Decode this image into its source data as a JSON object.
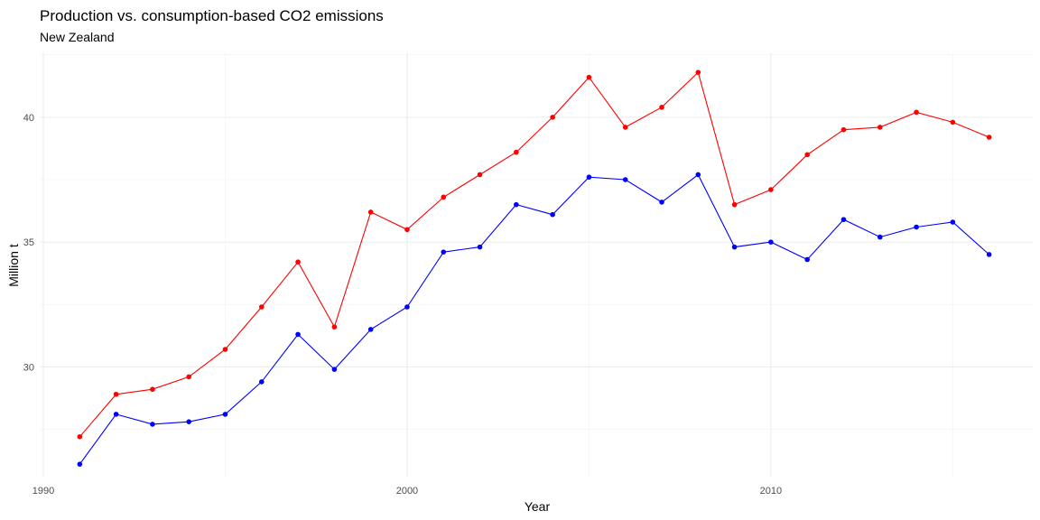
{
  "chart_data": {
    "type": "line",
    "title": "Production vs. consumption-based CO2 emissions",
    "subtitle": "New Zealand",
    "xlabel": "Year",
    "ylabel": "Million t",
    "xlim": [
      1989.9,
      2017.2
    ],
    "ylim": [
      25.6,
      42.6
    ],
    "x_ticks": [
      1990,
      2000,
      2010
    ],
    "x_minor_ticks": [
      1995,
      2005,
      2015
    ],
    "y_ticks": [
      30,
      35,
      40
    ],
    "y_minor_ticks": [
      27.5,
      32.5,
      37.5,
      42.5
    ],
    "grid": true,
    "legend": "none",
    "x": [
      1991,
      1992,
      1993,
      1994,
      1995,
      1996,
      1997,
      1998,
      1999,
      2000,
      2001,
      2002,
      2003,
      2004,
      2005,
      2006,
      2007,
      2008,
      2009,
      2010,
      2011,
      2012,
      2013,
      2014,
      2015,
      2016
    ],
    "series": [
      {
        "color": "#ff0000",
        "values": [
          27.2,
          28.9,
          29.1,
          29.6,
          30.7,
          32.4,
          34.2,
          31.6,
          36.2,
          35.5,
          36.8,
          37.7,
          38.6,
          40.0,
          41.6,
          39.6,
          40.4,
          41.8,
          36.5,
          37.1,
          38.5,
          39.5,
          39.6,
          40.2,
          39.8,
          39.2
        ]
      },
      {
        "color": "#0000ff",
        "values": [
          26.1,
          28.1,
          27.7,
          27.8,
          28.1,
          29.4,
          31.3,
          29.9,
          31.5,
          32.4,
          34.6,
          34.8,
          36.5,
          36.1,
          37.6,
          37.5,
          36.6,
          37.7,
          34.8,
          35.0,
          34.3,
          35.9,
          35.2,
          35.6,
          35.8,
          34.5
        ]
      }
    ]
  }
}
